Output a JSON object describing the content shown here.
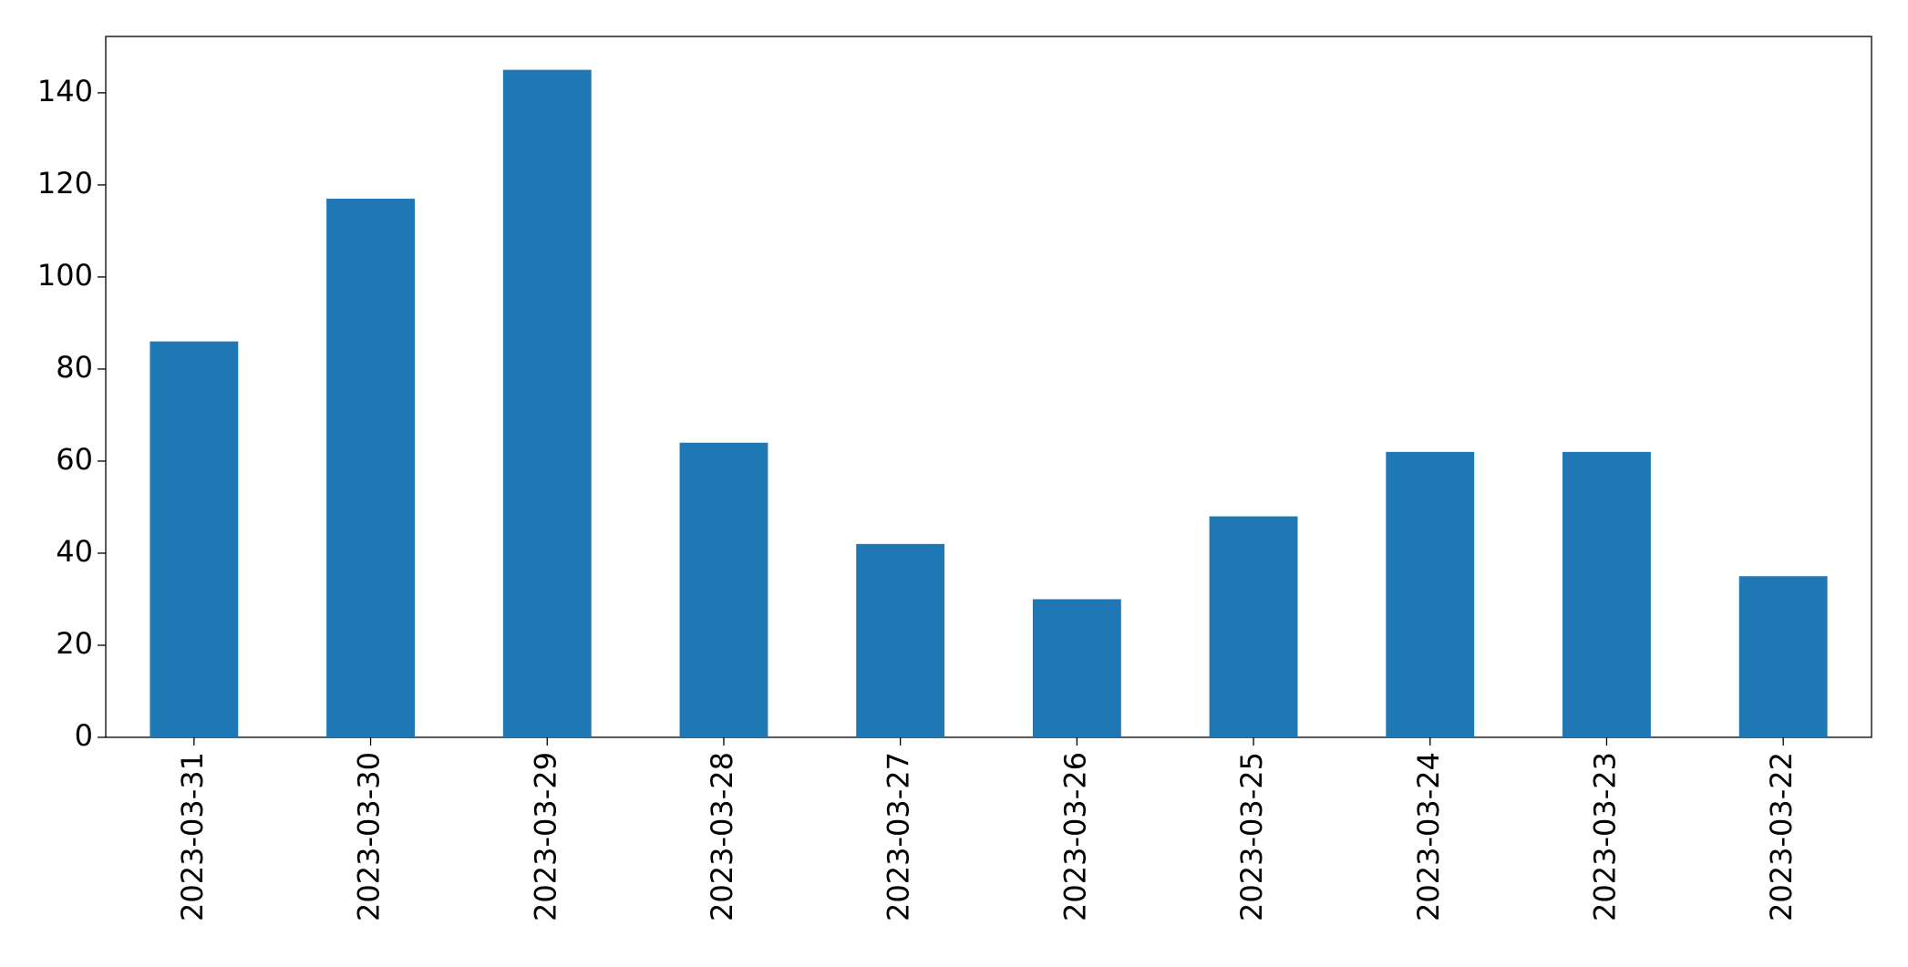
{
  "chart_data": {
    "type": "bar",
    "categories": [
      "2023-03-31",
      "2023-03-30",
      "2023-03-29",
      "2023-03-28",
      "2023-03-27",
      "2023-03-26",
      "2023-03-25",
      "2023-03-24",
      "2023-03-23",
      "2023-03-22"
    ],
    "values": [
      86,
      117,
      145,
      64,
      42,
      30,
      48,
      62,
      62,
      35
    ],
    "color": "#1f77b4",
    "ylim": [
      0,
      152.25
    ],
    "yticks": [
      0,
      20,
      40,
      60,
      80,
      100,
      120,
      140
    ],
    "grid": false
  }
}
